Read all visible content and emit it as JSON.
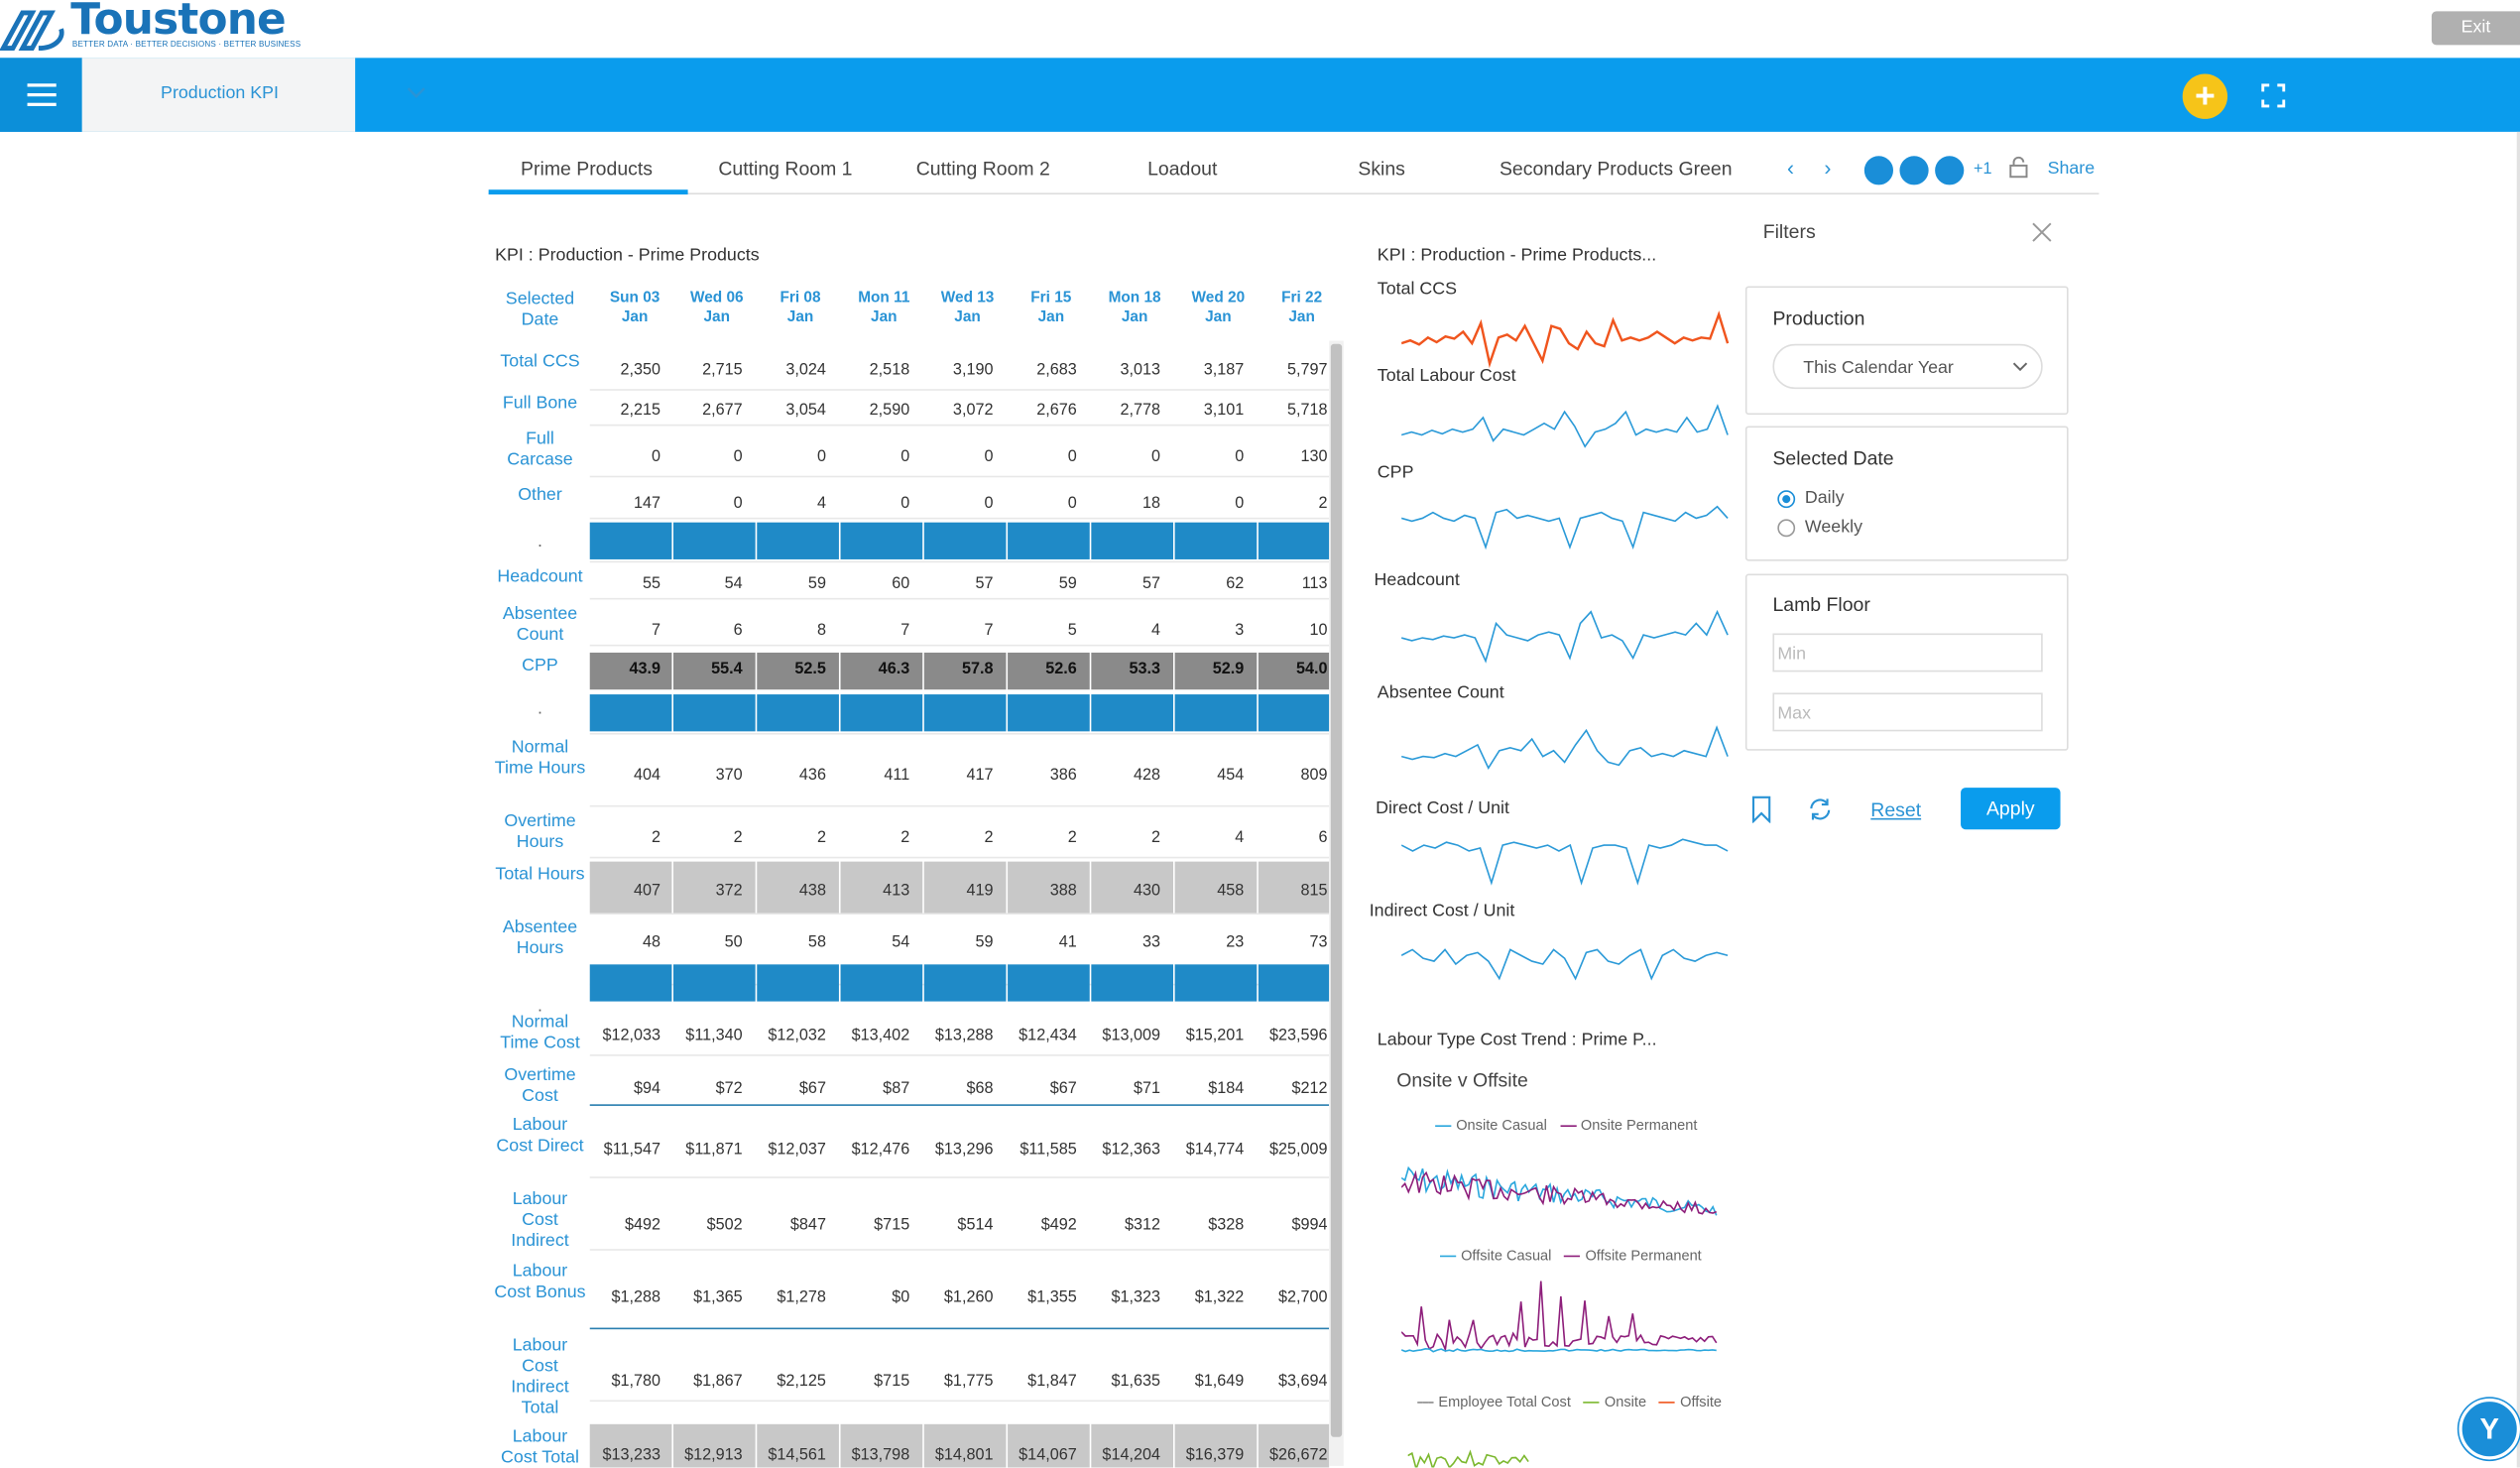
{
  "brand": {
    "name": "Toustone",
    "tagline": "BETTER DATA · BETTER DECISIONS · BETTER BUSINESS"
  },
  "topbar": {
    "exit_label": "Exit"
  },
  "navbar": {
    "dashboard": "Production KPI"
  },
  "tabs": [
    "Prime Products",
    "Cutting Room 1",
    "Cutting Room 2",
    "Loadout",
    "Skins",
    "Secondary Products Green"
  ],
  "active_tab": 0,
  "collab": {
    "extra": "+1",
    "share": "Share"
  },
  "kpi_table": {
    "title": "KPI : Production - Prime Products",
    "corner": "Selected Date",
    "dates": [
      "Sun 03 Jan",
      "Wed 06 Jan",
      "Fri 08 Jan",
      "Mon 11 Jan",
      "Wed 13 Jan",
      "Fri 15 Jan",
      "Mon 18 Jan",
      "Wed 20 Jan",
      "Fri 22 Jan"
    ],
    "rows": [
      {
        "label": "Total CCS",
        "values": [
          "2,350",
          "2,715",
          "3,024",
          "2,518",
          "3,190",
          "2,683",
          "3,013",
          "3,187",
          "5,797"
        ]
      },
      {
        "label": "Full Bone",
        "values": [
          "2,215",
          "2,677",
          "3,054",
          "2,590",
          "3,072",
          "2,676",
          "2,778",
          "3,101",
          "5,718"
        ]
      },
      {
        "label": "Full Carcase",
        "values": [
          "0",
          "0",
          "0",
          "0",
          "0",
          "0",
          "0",
          "0",
          "130"
        ]
      },
      {
        "label": "Other",
        "values": [
          "147",
          "0",
          "4",
          "0",
          "0",
          "0",
          "18",
          "0",
          "2"
        ]
      },
      {
        "label": ".",
        "values": []
      },
      {
        "label": "Headcount",
        "values": [
          "55",
          "54",
          "59",
          "60",
          "57",
          "59",
          "57",
          "62",
          "113"
        ]
      },
      {
        "label": "Absentee Count",
        "values": [
          "7",
          "6",
          "8",
          "7",
          "7",
          "5",
          "4",
          "3",
          "10"
        ]
      },
      {
        "label": "CPP",
        "values": [
          "43.9",
          "55.4",
          "52.5",
          "46.3",
          "57.8",
          "52.6",
          "53.3",
          "52.9",
          "54.0"
        ]
      },
      {
        "label": ".",
        "values": []
      },
      {
        "label": "Normal Time Hours",
        "values": [
          "404",
          "370",
          "436",
          "411",
          "417",
          "386",
          "428",
          "454",
          "809"
        ]
      },
      {
        "label": "Overtime Hours",
        "values": [
          "2",
          "2",
          "2",
          "2",
          "2",
          "2",
          "2",
          "4",
          "6"
        ]
      },
      {
        "label": "Total Hours",
        "values": [
          "407",
          "372",
          "438",
          "413",
          "419",
          "388",
          "430",
          "458",
          "815"
        ]
      },
      {
        "label": "Absentee Hours",
        "values": [
          "48",
          "50",
          "58",
          "54",
          "59",
          "41",
          "33",
          "23",
          "73"
        ]
      },
      {
        "label": ".",
        "values": []
      },
      {
        "label": "Normal Time Cost",
        "values": [
          "$12,033",
          "$11,340",
          "$12,032",
          "$13,402",
          "$13,288",
          "$12,434",
          "$13,009",
          "$15,201",
          "$23,596"
        ]
      },
      {
        "label": "Overtime Cost",
        "values": [
          "$94",
          "$72",
          "$67",
          "$87",
          "$68",
          "$67",
          "$71",
          "$184",
          "$212"
        ]
      },
      {
        "label": "Labour Cost Direct",
        "values": [
          "$11,547",
          "$11,871",
          "$12,037",
          "$12,476",
          "$13,296",
          "$11,585",
          "$12,363",
          "$14,774",
          "$25,009"
        ]
      },
      {
        "label": "Labour Cost Indirect",
        "values": [
          "$492",
          "$502",
          "$847",
          "$715",
          "$514",
          "$492",
          "$312",
          "$328",
          "$994"
        ]
      },
      {
        "label": "Labour Cost Bonus",
        "values": [
          "$1,288",
          "$1,365",
          "$1,278",
          "$0",
          "$1,260",
          "$1,355",
          "$1,323",
          "$1,322",
          "$2,700"
        ]
      },
      {
        "label": "Labour Cost Indirect Total",
        "values": [
          "$1,780",
          "$1,867",
          "$2,125",
          "$715",
          "$1,775",
          "$1,847",
          "$1,635",
          "$1,649",
          "$3,694"
        ]
      },
      {
        "label": "Labour Cost Total",
        "values": [
          "$13,233",
          "$12,913",
          "$14,561",
          "$13,798",
          "$14,801",
          "$14,067",
          "$14,204",
          "$16,379",
          "$26,672"
        ]
      }
    ]
  },
  "sparklines": {
    "title": "KPI : Production - Prime Products...",
    "items": [
      "Total CCS",
      "Total Labour Cost",
      "CPP",
      "Headcount",
      "Absentee Count",
      "Direct Cost / Unit",
      "Indirect Cost / Unit"
    ],
    "colors": {
      "highlight": "#f0551e",
      "normal": "#2b9ad8"
    }
  },
  "labour_trend": {
    "title": "Labour Type Cost Trend : Prime P...",
    "subtitle": "Onsite v Offsite",
    "legend1": [
      "Onsite Casual",
      "Onsite Permanent"
    ],
    "legend2": [
      "Offsite Casual",
      "Offsite Permanent"
    ],
    "legend3": [
      "Employee Total Cost",
      "Onsite",
      "Offsite"
    ],
    "colors": {
      "casual": "#2ba7dd",
      "permanent": "#8e1f7b",
      "total": "#999999",
      "onsite": "#7cb82f",
      "offsite": "#f0551e"
    }
  },
  "filters": {
    "title": "Filters",
    "production": {
      "label": "Production",
      "value": "This Calendar Year"
    },
    "selected_date": {
      "label": "Selected Date",
      "options": [
        "Daily",
        "Weekly"
      ],
      "selected": "Daily"
    },
    "lamb_floor": {
      "label": "Lamb Floor",
      "min_placeholder": "Min",
      "max_placeholder": "Max"
    },
    "reset_label": "Reset",
    "apply_label": "Apply"
  },
  "chat_label": "Y"
}
